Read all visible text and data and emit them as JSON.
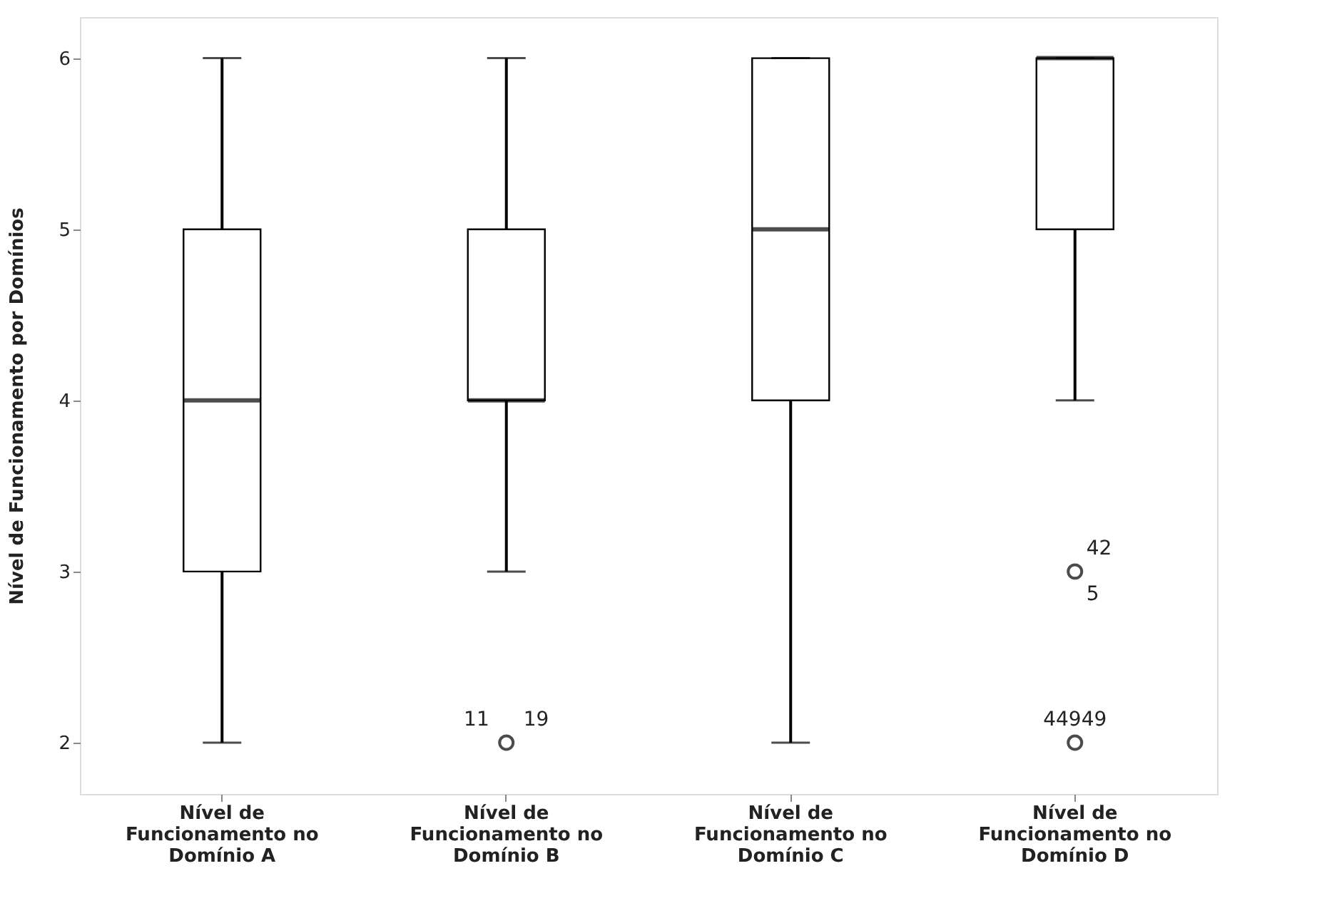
{
  "chart_data": {
    "type": "box",
    "ylabel": "Nível de Funcionamento por Domínios",
    "categories": [
      "Nível de Funcionamento no Domínio A",
      "Nível de Funcionamento no Domínio B",
      "Nível de Funcionamento no Domínio C",
      "Nível de Funcionamento no Domínio D"
    ],
    "boxes": [
      {
        "low": 2,
        "q1": 3,
        "median": 4,
        "q3": 5,
        "high": 6
      },
      {
        "low": 3,
        "q1": 4,
        "median": 4,
        "q3": 5,
        "high": 6,
        "outliers": [
          2
        ]
      },
      {
        "low": 2,
        "q1": 4,
        "median": 5,
        "q3": 6,
        "high": 6
      },
      {
        "low": 4,
        "q1": 5,
        "median": 6,
        "q3": 6,
        "high": 6,
        "outliers": [
          3,
          2
        ]
      }
    ],
    "ylim": [
      1.7,
      6.24
    ],
    "yticks": [
      2,
      3,
      4,
      5,
      6
    ],
    "annotations": [
      "11",
      "19",
      "42",
      "5",
      "44949"
    ]
  }
}
